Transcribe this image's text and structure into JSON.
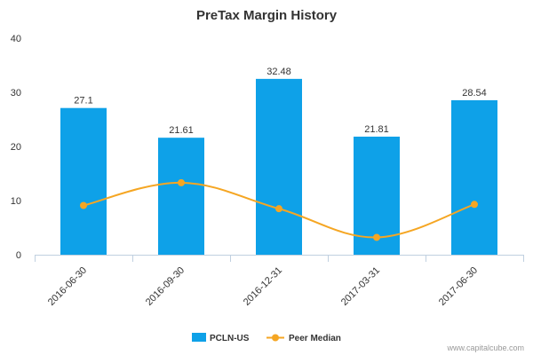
{
  "chart_data": {
    "type": "bar",
    "title": "PreTax Margin History",
    "categories": [
      "2016-06-30",
      "2016-09-30",
      "2016-12-31",
      "2017-03-31",
      "2017-06-30"
    ],
    "series": [
      {
        "name": "PCLN-US",
        "type": "bar",
        "values": [
          27.1,
          21.61,
          32.48,
          21.81,
          28.54
        ],
        "data_labels": [
          "27.1",
          "21.61",
          "32.48",
          "21.81",
          "28.54"
        ],
        "color": "#0ea1e8"
      },
      {
        "name": "Peer Median",
        "type": "line",
        "values": [
          9.1,
          13.3,
          8.5,
          3.2,
          9.3
        ],
        "color": "#f5a623"
      }
    ],
    "ylim": [
      0,
      40
    ],
    "yticks": [
      "0",
      "10",
      "20",
      "30",
      "40"
    ],
    "grid": false,
    "legend": "bottom-center"
  },
  "credit": "www.capitalcube.com"
}
